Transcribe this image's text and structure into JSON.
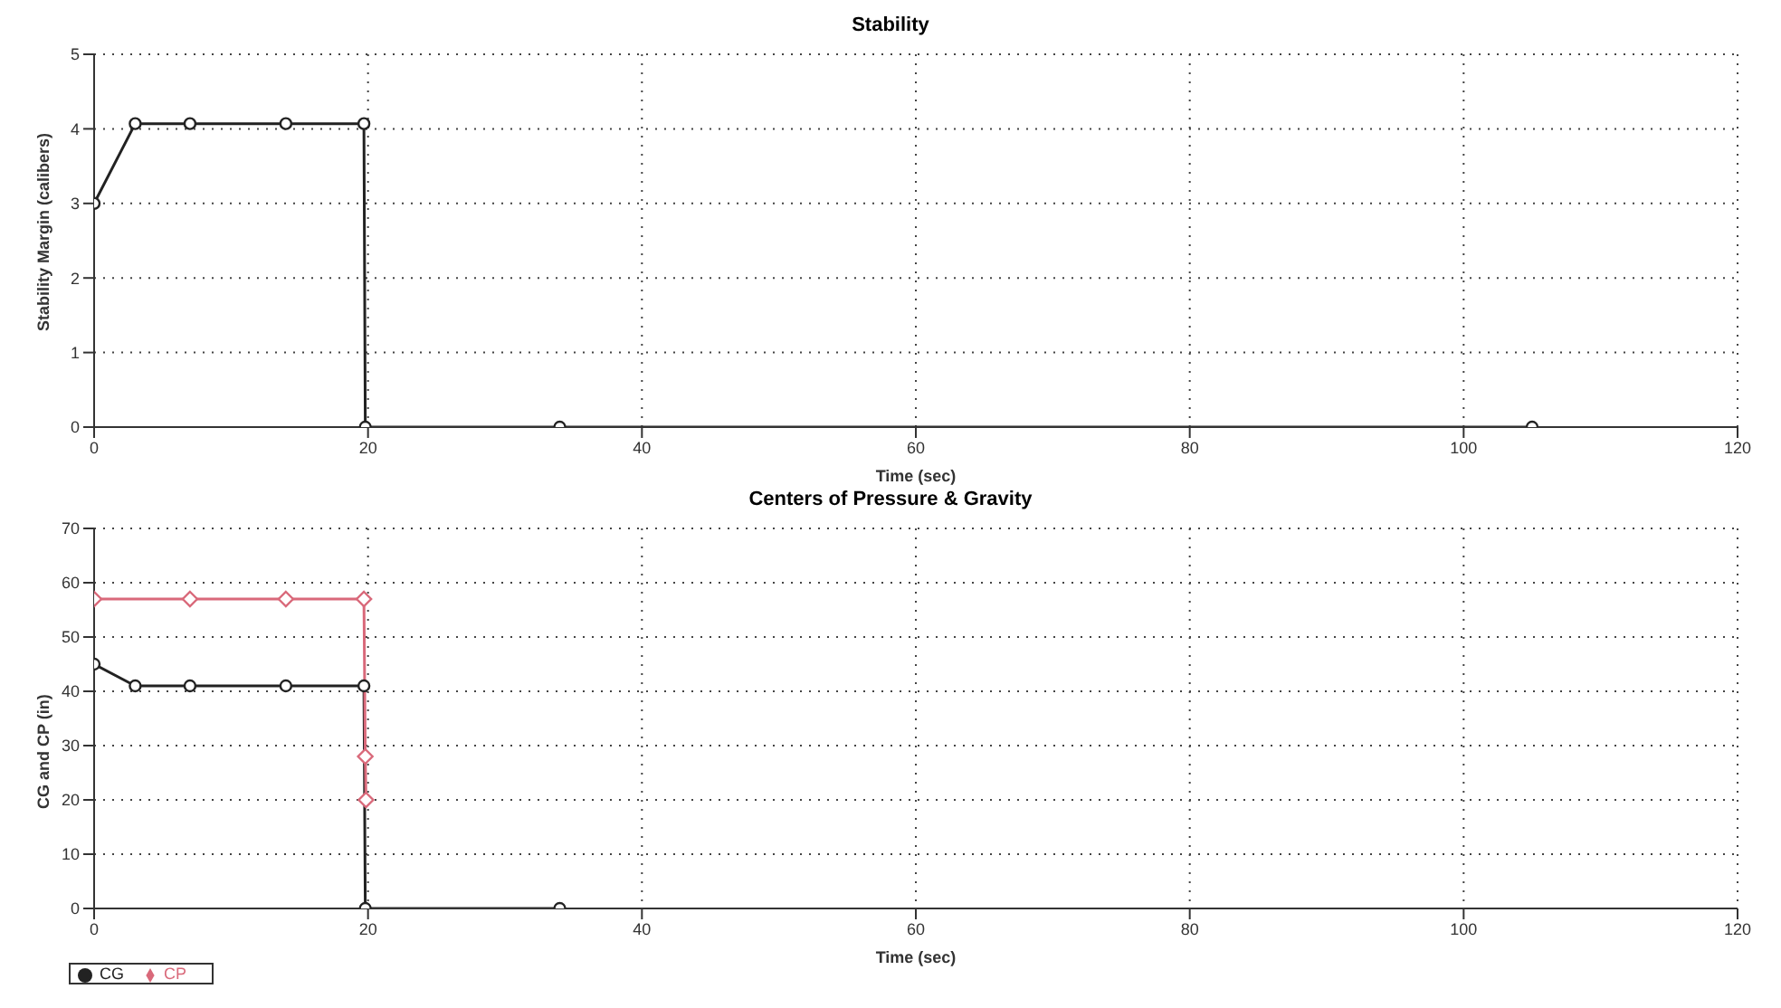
{
  "chart_data": [
    {
      "type": "line",
      "title": "Stability",
      "xlabel": "Time (sec)",
      "ylabel": "Stability Margin (calibers)",
      "xlim": [
        0,
        120
      ],
      "xticks": [
        0,
        20,
        40,
        60,
        80,
        100,
        120
      ],
      "ylim": [
        0,
        5
      ],
      "yticks": [
        0,
        1,
        2,
        3,
        4,
        5
      ],
      "grid": true,
      "legend": false,
      "marker": "circle",
      "line_style": "solid",
      "series": [
        {
          "color": "#222222",
          "x": [
            0,
            3,
            7,
            14,
            19.7,
            19.8,
            34,
            105
          ],
          "values": [
            3,
            4.07,
            4.07,
            4.07,
            4.07,
            0,
            0,
            0
          ]
        }
      ]
    },
    {
      "type": "line",
      "title": "Centers of Pressure & Gravity",
      "xlabel": "Time (sec)",
      "ylabel": "CG and CP (in)",
      "xlim": [
        0,
        120
      ],
      "xticks": [
        0,
        20,
        40,
        60,
        80,
        100,
        120
      ],
      "ylim": [
        0,
        70
      ],
      "yticks": [
        0,
        10,
        20,
        30,
        40,
        50,
        60,
        70
      ],
      "grid": true,
      "legend": "bottom left",
      "line_style": "solid",
      "series": [
        {
          "name": "CG",
          "color": "#222222",
          "marker": "circle",
          "x": [
            0,
            3,
            7,
            14,
            19.7,
            19.8,
            34
          ],
          "values": [
            45,
            41,
            41,
            41,
            41,
            0,
            0
          ]
        },
        {
          "name": "CP",
          "color": "#d9697a",
          "marker": "diamond",
          "x": [
            0,
            7,
            14,
            19.7,
            19.8,
            19.85
          ],
          "values": [
            57,
            57,
            57,
            57,
            28,
            20
          ]
        }
      ]
    }
  ]
}
